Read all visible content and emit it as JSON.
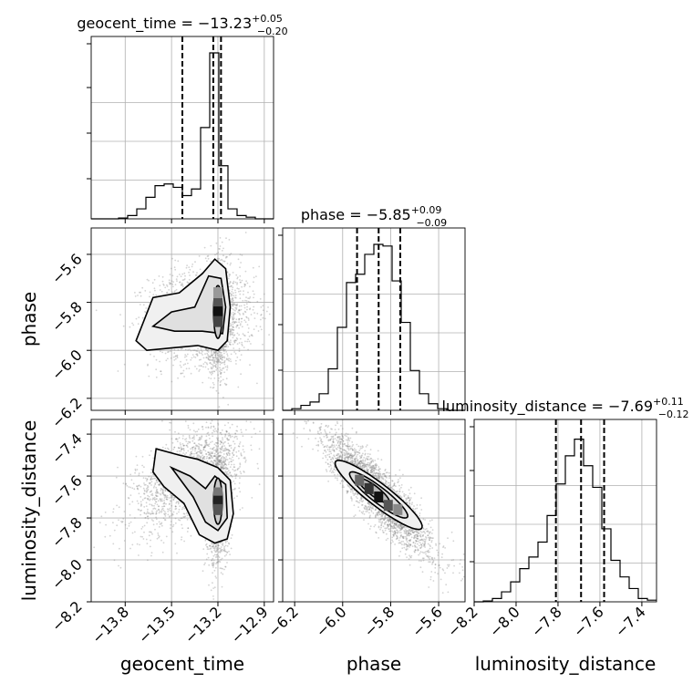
{
  "chart_data": {
    "type": "corner",
    "parameters": [
      "geocent_time",
      "phase",
      "luminosity_distance"
    ],
    "axis_labels": {
      "geocent_time": "geocent_time",
      "phase": "phase",
      "luminosity_distance": "luminosity_distance"
    },
    "titles": {
      "geocent_time": {
        "name": "geocent_time",
        "value": "−13.23",
        "plus": "+0.05",
        "minus": "−0.20"
      },
      "phase": {
        "name": "phase",
        "value": "−5.85",
        "plus": "+0.09",
        "minus": "−0.09"
      },
      "luminosity_distance": {
        "name": "luminosity_distance",
        "value": "−7.69",
        "plus": "+0.11",
        "minus": "−0.12"
      }
    },
    "ranges": {
      "geocent_time": [
        -14.02,
        -12.84
      ],
      "phase": [
        -6.25,
        -5.49
      ],
      "luminosity_distance": [
        -8.2,
        -7.33
      ]
    },
    "ticks": {
      "geocent_time": {
        "values": [
          -13.8,
          -13.5,
          -13.2,
          -12.9
        ],
        "labels": [
          "−13.8",
          "−13.5",
          "−13.2",
          "−12.9"
        ]
      },
      "phase": {
        "values": [
          -6.2,
          -6.0,
          -5.8,
          -5.6
        ],
        "labels": [
          "−6.2",
          "−6.0",
          "−5.8",
          "−5.6"
        ]
      },
      "luminosity_distance": {
        "values": [
          -8.2,
          -8.0,
          -7.8,
          -7.6,
          -7.4
        ],
        "labels": [
          "−8.2",
          "−8.0",
          "−7.8",
          "−7.6",
          "−7.4"
        ]
      }
    },
    "histograms": {
      "geocent_time": {
        "bin_edges": [
          -14.02,
          -13.961,
          -13.902,
          -13.843,
          -13.784,
          -13.725,
          -13.666,
          -13.607,
          -13.548,
          -13.489,
          -13.43,
          -13.371,
          -13.312,
          -13.253,
          -13.194,
          -13.135,
          -13.076,
          -13.017,
          -12.958,
          -12.899,
          -12.84
        ],
        "counts": [
          0,
          0,
          0,
          0.005,
          0.02,
          0.06,
          0.13,
          0.2,
          0.21,
          0.19,
          0.14,
          0.18,
          0.55,
          1.0,
          0.32,
          0.06,
          0.02,
          0.01,
          0,
          0
        ],
        "quantiles": [
          -13.43,
          -13.23,
          -13.18
        ]
      },
      "phase": {
        "bin_edges": [
          -6.25,
          -6.212,
          -6.174,
          -6.136,
          -6.098,
          -6.06,
          -6.022,
          -5.984,
          -5.946,
          -5.908,
          -5.87,
          -5.832,
          -5.794,
          -5.756,
          -5.718,
          -5.68,
          -5.642,
          -5.604,
          -5.566,
          -5.528,
          -5.49
        ],
        "counts": [
          0,
          0.01,
          0.03,
          0.05,
          0.1,
          0.25,
          0.5,
          0.77,
          0.82,
          0.94,
          1.0,
          0.99,
          0.78,
          0.53,
          0.24,
          0.1,
          0.04,
          0.01,
          0,
          0
        ],
        "quantiles": [
          -5.94,
          -5.85,
          -5.76
        ]
      },
      "luminosity_distance": {
        "bin_edges": [
          -8.2,
          -8.1565,
          -8.113,
          -8.0695,
          -8.026,
          -7.9825,
          -7.939,
          -7.8955,
          -7.852,
          -7.8085,
          -7.765,
          -7.7215,
          -7.678,
          -7.6345,
          -7.591,
          -7.5475,
          -7.504,
          -7.4605,
          -7.417,
          -7.3735,
          -7.33
        ],
        "counts": [
          0,
          0.005,
          0.02,
          0.06,
          0.12,
          0.2,
          0.27,
          0.36,
          0.52,
          0.71,
          0.88,
          0.98,
          0.82,
          0.69,
          0.44,
          0.25,
          0.15,
          0.08,
          0.02,
          0.01
        ],
        "quantiles": [
          -7.81,
          -7.69,
          -7.58
        ]
      }
    },
    "pairs": [
      {
        "x": "geocent_time",
        "y": "phase"
      },
      {
        "x": "geocent_time",
        "y": "luminosity_distance"
      },
      {
        "x": "phase",
        "y": "luminosity_distance"
      }
    ],
    "grid": true,
    "line_color": "#000000",
    "point_color": "#808080",
    "quantile_color": "#000000"
  }
}
